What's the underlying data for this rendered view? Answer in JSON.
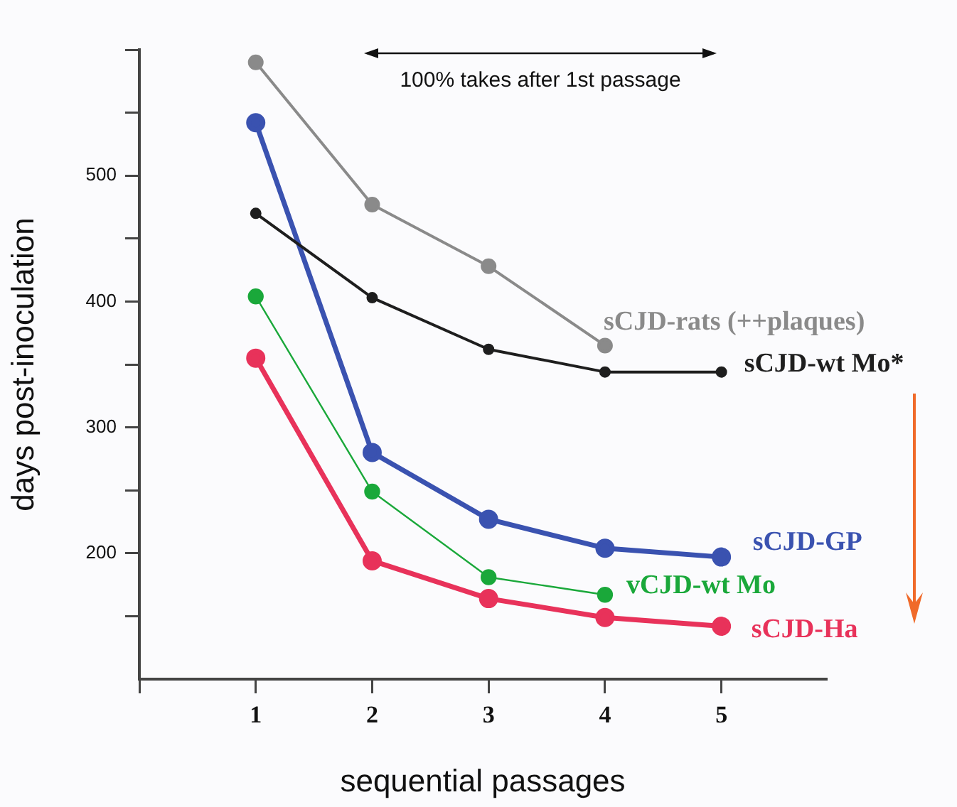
{
  "chart_data": {
    "type": "line",
    "xlabel": "sequential passages",
    "ylabel": "days post-inoculation",
    "x": [
      1,
      2,
      3,
      4,
      5
    ],
    "xlim": [
      0,
      5.9
    ],
    "xticks": [
      {
        "value": 0,
        "label": null
      },
      1,
      2,
      3,
      4,
      5
    ],
    "ylim": [
      100,
      600
    ],
    "yticks": [
      {
        "value": 150,
        "label": null
      },
      200,
      {
        "value": 250,
        "label": null
      },
      300,
      {
        "value": 350,
        "label": null
      },
      400,
      {
        "value": 450,
        "label": null
      },
      500,
      {
        "value": 550,
        "label": null
      },
      {
        "value": 600,
        "label": null
      }
    ],
    "series": [
      {
        "name": "sCJD-rats (++plaques)",
        "color": "#8a8a8a",
        "values": [
          590,
          477,
          428,
          365,
          null
        ]
      },
      {
        "name": "sCJD-wt Mo*",
        "color": "#1e1e1e",
        "values": [
          470,
          403,
          362,
          344,
          344
        ]
      },
      {
        "name": "sCJD-GP",
        "color": "#3a52b0",
        "values": [
          542,
          280,
          227,
          204,
          197
        ]
      },
      {
        "name": "vCJD-wt Mo",
        "color": "#1aa83a",
        "values": [
          404,
          249,
          181,
          167,
          null
        ]
      },
      {
        "name": "sCJD-Ha",
        "color": "#e8325a",
        "values": [
          355,
          194,
          164,
          149,
          142
        ]
      }
    ],
    "annotations": [
      "100% takes after 1st passage"
    ],
    "marker": "circle",
    "line_style": "solid",
    "grid": false,
    "legend": false
  }
}
